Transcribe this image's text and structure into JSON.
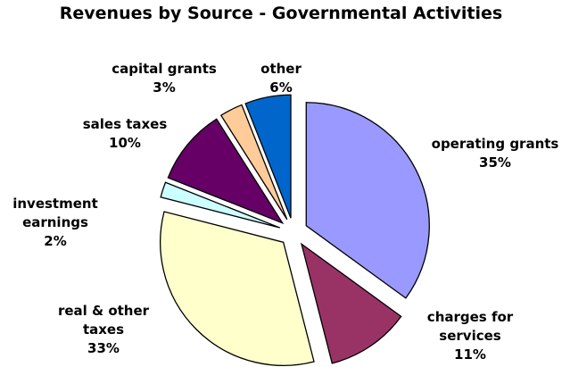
{
  "chart_data": {
    "type": "pie",
    "title": "Revenues by Source - Governmental Activities",
    "slices": [
      {
        "label": [
          "operating grants"
        ],
        "value": 35,
        "display": "35%",
        "color": "#9999ff"
      },
      {
        "label": [
          "charges for",
          "services"
        ],
        "value": 11,
        "display": "11%",
        "color": "#993366"
      },
      {
        "label": [
          "real & other",
          "taxes"
        ],
        "value": 33,
        "display": "33%",
        "color": "#ffffcc"
      },
      {
        "label": [
          "investment",
          "earnings"
        ],
        "value": 2,
        "display": "2%",
        "color": "#ccffff"
      },
      {
        "label": [
          "sales taxes"
        ],
        "value": 10,
        "display": "10%",
        "color": "#660066"
      },
      {
        "label": [
          "capital grants"
        ],
        "value": 3,
        "display": "3%",
        "color": "#ffcc99"
      },
      {
        "label": [
          "other"
        ],
        "value": 6,
        "display": "6%",
        "color": "#0066cc"
      }
    ],
    "exploded": true,
    "legend": "none"
  }
}
